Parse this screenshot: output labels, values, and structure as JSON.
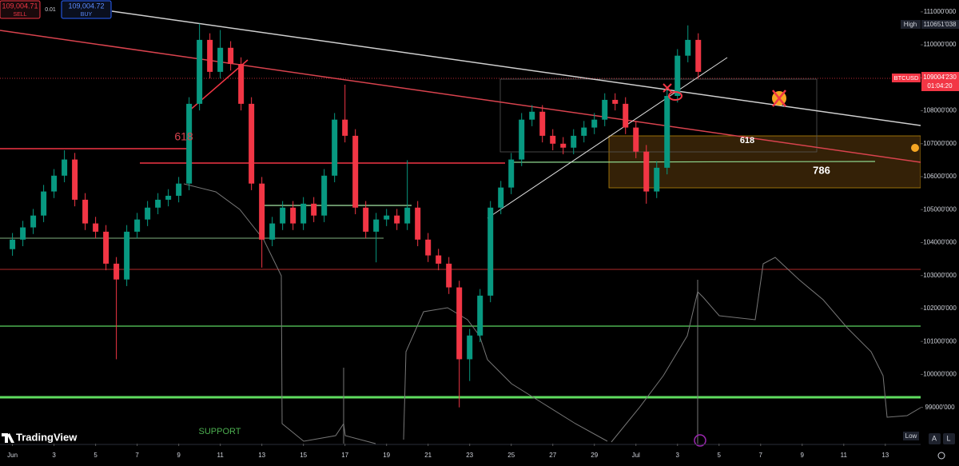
{
  "chart_data": {
    "type": "candlestick",
    "symbol": "BTCUSD",
    "up_color": "#089981",
    "down_color": "#f23645",
    "grid": false,
    "xlim": [
      -0.6,
      43.7
    ],
    "ylim": [
      97900,
      111360
    ],
    "xticks": [
      {
        "value": 0,
        "label": "Jun"
      },
      {
        "value": 2,
        "label": "3"
      },
      {
        "value": 4,
        "label": "5"
      },
      {
        "value": 6,
        "label": "7"
      },
      {
        "value": 8,
        "label": "9"
      },
      {
        "value": 10,
        "label": "11"
      },
      {
        "value": 12,
        "label": "13"
      },
      {
        "value": 14,
        "label": "15"
      },
      {
        "value": 16,
        "label": "17"
      },
      {
        "value": 18,
        "label": "19"
      },
      {
        "value": 20,
        "label": "21"
      },
      {
        "value": 22,
        "label": "23"
      },
      {
        "value": 24,
        "label": "25"
      },
      {
        "value": 26,
        "label": "27"
      },
      {
        "value": 28,
        "label": "29"
      },
      {
        "value": 30,
        "label": "Jul"
      },
      {
        "value": 32,
        "label": "3"
      },
      {
        "value": 34,
        "label": "5"
      },
      {
        "value": 36,
        "label": "7"
      },
      {
        "value": 38,
        "label": "9"
      },
      {
        "value": 40,
        "label": "11"
      },
      {
        "value": 42,
        "label": "13"
      }
    ],
    "yticks": [
      {
        "value": 99000,
        "label": "99000'000"
      },
      {
        "value": 100000,
        "label": "100000'000"
      },
      {
        "value": 101000,
        "label": "101000'000"
      },
      {
        "value": 102000,
        "label": "102000'000"
      },
      {
        "value": 103000,
        "label": "103000'000"
      },
      {
        "value": 104000,
        "label": "104000'000"
      },
      {
        "value": 105000,
        "label": "105000'000"
      },
      {
        "value": 106000,
        "label": "106000'000"
      },
      {
        "value": 107000,
        "label": "107000'000"
      },
      {
        "value": 108000,
        "label": "108000'000"
      },
      {
        "value": 109000,
        "label": "109000'000"
      },
      {
        "value": 110000,
        "label": "110000'000"
      },
      {
        "value": 111000,
        "label": "111000'000"
      }
    ],
    "x": [
      0,
      0.5,
      1,
      1.5,
      2,
      2.5,
      3,
      3.5,
      4,
      4.5,
      5,
      5.5,
      6,
      6.5,
      7,
      7.5,
      8,
      8.5,
      9,
      9.5,
      10,
      10.5,
      11,
      11.5,
      12,
      12.5,
      13,
      13.5,
      14,
      14.5,
      15,
      15.5,
      16,
      16.5,
      17,
      17.5,
      18,
      18.5,
      19,
      19.5,
      20,
      20.5,
      21,
      21.5,
      22,
      22.5,
      23,
      23.5,
      24,
      24.5,
      25,
      25.5,
      26,
      26.5,
      27,
      27.5,
      28,
      28.5,
      29,
      29.5,
      30,
      30.5,
      31,
      31.5,
      32,
      32.5,
      33
    ],
    "open": [
      103800,
      104090,
      104460,
      104820,
      105550,
      106030,
      106520,
      105300,
      104580,
      104330,
      103360,
      102880,
      104330,
      104700,
      105060,
      105300,
      105420,
      105790,
      108210,
      110150,
      109180,
      109910,
      109420,
      108210,
      105790,
      104090,
      104580,
      105060,
      104580,
      105180,
      104820,
      106030,
      107730,
      107240,
      105060,
      104330,
      104700,
      104820,
      104580,
      105060,
      104090,
      103610,
      103360,
      102640,
      100460,
      101180,
      102390,
      105060,
      105670,
      106520,
      107730,
      107970,
      107240,
      107000,
      106880,
      107240,
      107490,
      107730,
      108330,
      108210,
      107490,
      106760,
      105550,
      106270,
      108450,
      109670,
      110150
    ],
    "high": [
      104290,
      104660,
      105020,
      105750,
      106230,
      106800,
      106720,
      105500,
      104780,
      104530,
      103560,
      104530,
      104900,
      105260,
      105500,
      105620,
      105990,
      108410,
      110640,
      110350,
      110450,
      110110,
      109620,
      108410,
      105990,
      104780,
      105260,
      105260,
      105380,
      105380,
      106230,
      107930,
      108790,
      107440,
      105260,
      104900,
      105020,
      105020,
      106500,
      105260,
      104290,
      103810,
      103560,
      102840,
      101380,
      102590,
      105260,
      105870,
      106720,
      107930,
      108170,
      108170,
      107440,
      107200,
      107440,
      107690,
      107930,
      108530,
      108530,
      108410,
      107690,
      106960,
      106470,
      108650,
      109870,
      110590,
      110350
    ],
    "low": [
      103600,
      103890,
      104260,
      104620,
      105350,
      105830,
      105100,
      104380,
      104130,
      103160,
      100460,
      102680,
      104130,
      104500,
      104860,
      105100,
      105220,
      105590,
      108010,
      108980,
      108980,
      109220,
      108010,
      105590,
      103240,
      103890,
      104380,
      104380,
      104380,
      104620,
      104620,
      105830,
      107040,
      104860,
      104130,
      103400,
      104500,
      104380,
      104380,
      103890,
      103410,
      103160,
      102440,
      99000,
      99800,
      100980,
      102190,
      104860,
      105470,
      106320,
      107530,
      107040,
      106800,
      106680,
      106680,
      107040,
      107290,
      107530,
      108010,
      107290,
      106560,
      105180,
      105350,
      106070,
      108250,
      109470,
      108980
    ],
    "close": [
      104090,
      104460,
      104820,
      105550,
      106030,
      106520,
      105300,
      104580,
      104330,
      103360,
      102880,
      104330,
      104700,
      105060,
      105300,
      105420,
      105790,
      108210,
      110150,
      109180,
      109910,
      109420,
      108210,
      105790,
      104090,
      104580,
      105060,
      104580,
      105180,
      104820,
      106030,
      107730,
      107240,
      105060,
      104330,
      104700,
      104820,
      104580,
      105060,
      104090,
      103610,
      103360,
      102640,
      100460,
      101180,
      102390,
      105060,
      105670,
      106520,
      107730,
      107970,
      107240,
      107000,
      106880,
      107240,
      107490,
      107730,
      108330,
      108210,
      107490,
      106760,
      105550,
      106270,
      108450,
      109670,
      110150,
      109180
    ],
    "annotations": [
      "618",
      "618",
      "786",
      "SUPPORT"
    ]
  },
  "trade_panel": {
    "sell_price": "109,004.71",
    "sell": "SELL",
    "quantity": "0.01",
    "buy_price": "109,004.72",
    "buy": "BUY"
  },
  "price_scale": {
    "high": "High",
    "high_price": "110651'038",
    "symbol": "BTCUSD",
    "last_price": "109004'230",
    "countdown": "01:04:20",
    "low": "Low"
  },
  "branding": "TradingView",
  "buttons": [
    "A",
    "L"
  ]
}
